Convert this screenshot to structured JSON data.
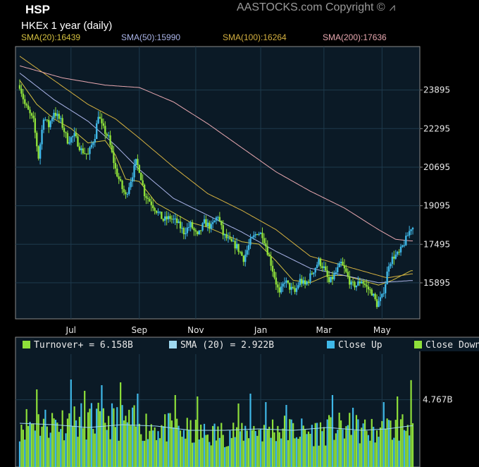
{
  "header": {
    "title": "HSP",
    "subtitle": "HKEx  1 year (daily)",
    "copyright": "AASTOCKS.com Copyright ©"
  },
  "sma_legend": [
    {
      "label": "SMA(20):16439",
      "color": "#d4c040"
    },
    {
      "label": "SMA(50):15990",
      "color": "#aab4e8"
    },
    {
      "label": "SMA(100):16264",
      "color": "#d4b040"
    },
    {
      "label": "SMA(200):17636",
      "color": "#e8a8b0"
    }
  ],
  "colors": {
    "panel_bg": "#0b1a26",
    "grid": "#1e3a4c",
    "border": "#8a8a8a",
    "up": "#3fb8e8",
    "down": "#8ee03a",
    "sma20": "#d4c040",
    "sma50": "#aab4e8",
    "sma100": "#d4b040",
    "sma200": "#e8a8b0",
    "turnover_sma": "#9ed8f0"
  },
  "chart_data": [
    {
      "type": "line",
      "title": "HSP",
      "subtitle": "HKEx  1 year (daily)",
      "x_tick_labels": [
        "Jul",
        "Sep",
        "Nov",
        "Jan",
        "Mar",
        "May"
      ],
      "y_tick_labels": [
        "23895",
        "22295",
        "20695",
        "19095",
        "17495",
        "15895"
      ],
      "y_ticks": [
        23895,
        22295,
        20695,
        19095,
        17495,
        15895
      ],
      "ylim": [
        14400,
        25700
      ],
      "grid": true,
      "x_index_range": [
        0,
        230
      ],
      "x_tick_index": [
        30,
        70,
        103,
        141,
        178,
        212
      ],
      "price_keypoints": [
        [
          0,
          24100
        ],
        [
          3,
          23300
        ],
        [
          8,
          22600
        ],
        [
          11,
          21100
        ],
        [
          14,
          22800
        ],
        [
          17,
          22400
        ],
        [
          20,
          23000
        ],
        [
          24,
          22600
        ],
        [
          28,
          21800
        ],
        [
          32,
          22000
        ],
        [
          36,
          21400
        ],
        [
          40,
          21200
        ],
        [
          44,
          22000
        ],
        [
          46,
          22900
        ],
        [
          48,
          22400
        ],
        [
          52,
          21900
        ],
        [
          56,
          20600
        ],
        [
          60,
          19800
        ],
        [
          62,
          19500
        ],
        [
          66,
          20400
        ],
        [
          68,
          20900
        ],
        [
          70,
          20600
        ],
        [
          73,
          19600
        ],
        [
          76,
          19300
        ],
        [
          80,
          18900
        ],
        [
          84,
          18500
        ],
        [
          88,
          18600
        ],
        [
          92,
          18400
        ],
        [
          96,
          18000
        ],
        [
          100,
          18300
        ],
        [
          104,
          17800
        ],
        [
          108,
          18400
        ],
        [
          112,
          18200
        ],
        [
          116,
          18700
        ],
        [
          119,
          17900
        ],
        [
          123,
          17600
        ],
        [
          127,
          17400
        ],
        [
          131,
          16900
        ],
        [
          135,
          17600
        ],
        [
          139,
          18000
        ],
        [
          142,
          17900
        ],
        [
          145,
          17200
        ],
        [
          147,
          16700
        ],
        [
          150,
          15900
        ],
        [
          152,
          15400
        ],
        [
          155,
          16000
        ],
        [
          158,
          15700
        ],
        [
          161,
          15500
        ],
        [
          164,
          16000
        ],
        [
          167,
          15800
        ],
        [
          171,
          16300
        ],
        [
          175,
          16800
        ],
        [
          178,
          16500
        ],
        [
          181,
          15900
        ],
        [
          184,
          16200
        ],
        [
          188,
          16700
        ],
        [
          191,
          16300
        ],
        [
          194,
          15800
        ],
        [
          197,
          15800
        ],
        [
          200,
          16000
        ],
        [
          203,
          15700
        ],
        [
          206,
          15500
        ],
        [
          209,
          15000
        ],
        [
          212,
          15300
        ],
        [
          214,
          15900
        ],
        [
          216,
          16700
        ],
        [
          219,
          17000
        ],
        [
          222,
          17100
        ],
        [
          226,
          17700
        ],
        [
          229,
          18200
        ]
      ],
      "series": [
        {
          "name": "SMA(20):16439",
          "keypoints": [
            [
              0,
              24300
            ],
            [
              10,
              23300
            ],
            [
              20,
              22700
            ],
            [
              30,
              22300
            ],
            [
              40,
              21700
            ],
            [
              50,
              21800
            ],
            [
              56,
              21200
            ],
            [
              62,
              20200
            ],
            [
              70,
              20100
            ],
            [
              80,
              19200
            ],
            [
              90,
              18800
            ],
            [
              100,
              18400
            ],
            [
              110,
              18200
            ],
            [
              120,
              17900
            ],
            [
              130,
              17600
            ],
            [
              140,
              17500
            ],
            [
              150,
              16800
            ],
            [
              160,
              16000
            ],
            [
              170,
              15900
            ],
            [
              180,
              16200
            ],
            [
              190,
              16200
            ],
            [
              200,
              16000
            ],
            [
              210,
              15800
            ],
            [
              218,
              16000
            ],
            [
              229,
              16400
            ]
          ]
        },
        {
          "name": "SMA(50):15990",
          "keypoints": [
            [
              0,
              24600
            ],
            [
              20,
              23500
            ],
            [
              40,
              22600
            ],
            [
              56,
              21600
            ],
            [
              70,
              20600
            ],
            [
              90,
              19400
            ],
            [
              110,
              18700
            ],
            [
              130,
              18000
            ],
            [
              150,
              17200
            ],
            [
              170,
              16500
            ],
            [
              190,
              16200
            ],
            [
              210,
              15900
            ],
            [
              229,
              15990
            ]
          ]
        },
        {
          "name": "SMA(100):16264",
          "keypoints": [
            [
              0,
              25300
            ],
            [
              20,
              24300
            ],
            [
              40,
              23300
            ],
            [
              56,
              22700
            ],
            [
              70,
              21900
            ],
            [
              90,
              20700
            ],
            [
              110,
              19600
            ],
            [
              130,
              18900
            ],
            [
              150,
              18100
            ],
            [
              170,
              17000
            ],
            [
              190,
              16600
            ],
            [
              205,
              16300
            ],
            [
              215,
              16100
            ],
            [
              229,
              16264
            ]
          ]
        },
        {
          "name": "SMA(200):17636",
          "keypoints": [
            [
              0,
              24900
            ],
            [
              25,
              24400
            ],
            [
              50,
              24100
            ],
            [
              70,
              24000
            ],
            [
              90,
              23400
            ],
            [
              110,
              22500
            ],
            [
              130,
              21500
            ],
            [
              150,
              20500
            ],
            [
              170,
              19700
            ],
            [
              190,
              19000
            ],
            [
              210,
              18100
            ],
            [
              220,
              17700
            ],
            [
              229,
              17636
            ]
          ]
        }
      ]
    },
    {
      "type": "bar",
      "title": "",
      "ylabel": "",
      "y_tick_labels": [
        "4.767B"
      ],
      "y_ticks": [
        4.767
      ],
      "ylim": [
        0,
        8.0
      ],
      "legend": [
        {
          "label": "Turnover+  = 6.158B",
          "color": "#8ee03a"
        },
        {
          "label": "SMA (20)  = 2.922B",
          "color": "#9ed8f0"
        },
        {
          "label": "Close Up",
          "color": "#3fb8e8"
        },
        {
          "label": "Close Down",
          "color": "#8ee03a"
        }
      ],
      "series": [
        {
          "name": "Turnover+",
          "last_value": 6.158
        },
        {
          "name": "SMA (20)",
          "last_value": 2.922,
          "keypoints": [
            [
              0,
              3.1
            ],
            [
              20,
              3.0
            ],
            [
              40,
              2.8
            ],
            [
              60,
              3.0
            ],
            [
              80,
              2.9
            ],
            [
              100,
              2.6
            ],
            [
              120,
              2.6
            ],
            [
              140,
              2.7
            ],
            [
              160,
              2.6
            ],
            [
              180,
              2.8
            ],
            [
              200,
              2.6
            ],
            [
              215,
              2.7
            ],
            [
              229,
              2.922
            ]
          ]
        }
      ],
      "volume_keypoints": [
        [
          0,
          3.3
        ],
        [
          30,
          3.4
        ],
        [
          50,
          3.5
        ],
        [
          70,
          3.2
        ],
        [
          90,
          2.8
        ],
        [
          110,
          2.4
        ],
        [
          130,
          2.7
        ],
        [
          150,
          2.9
        ],
        [
          170,
          2.6
        ],
        [
          190,
          2.9
        ],
        [
          210,
          2.6
        ],
        [
          229,
          3.2
        ]
      ],
      "volume_spikes": [
        [
          10,
          5.5
        ],
        [
          30,
          6.2
        ],
        [
          38,
          5.4
        ],
        [
          48,
          5.8
        ],
        [
          59,
          6.0
        ],
        [
          69,
          5.2
        ],
        [
          91,
          5.1
        ],
        [
          104,
          5.0
        ],
        [
          128,
          4.5
        ],
        [
          135,
          5.2
        ],
        [
          144,
          4.6
        ],
        [
          156,
          4.4
        ],
        [
          183,
          5.1
        ],
        [
          195,
          4.2
        ],
        [
          213,
          4.6
        ],
        [
          221,
          5.0
        ],
        [
          229,
          6.158
        ]
      ]
    }
  ]
}
